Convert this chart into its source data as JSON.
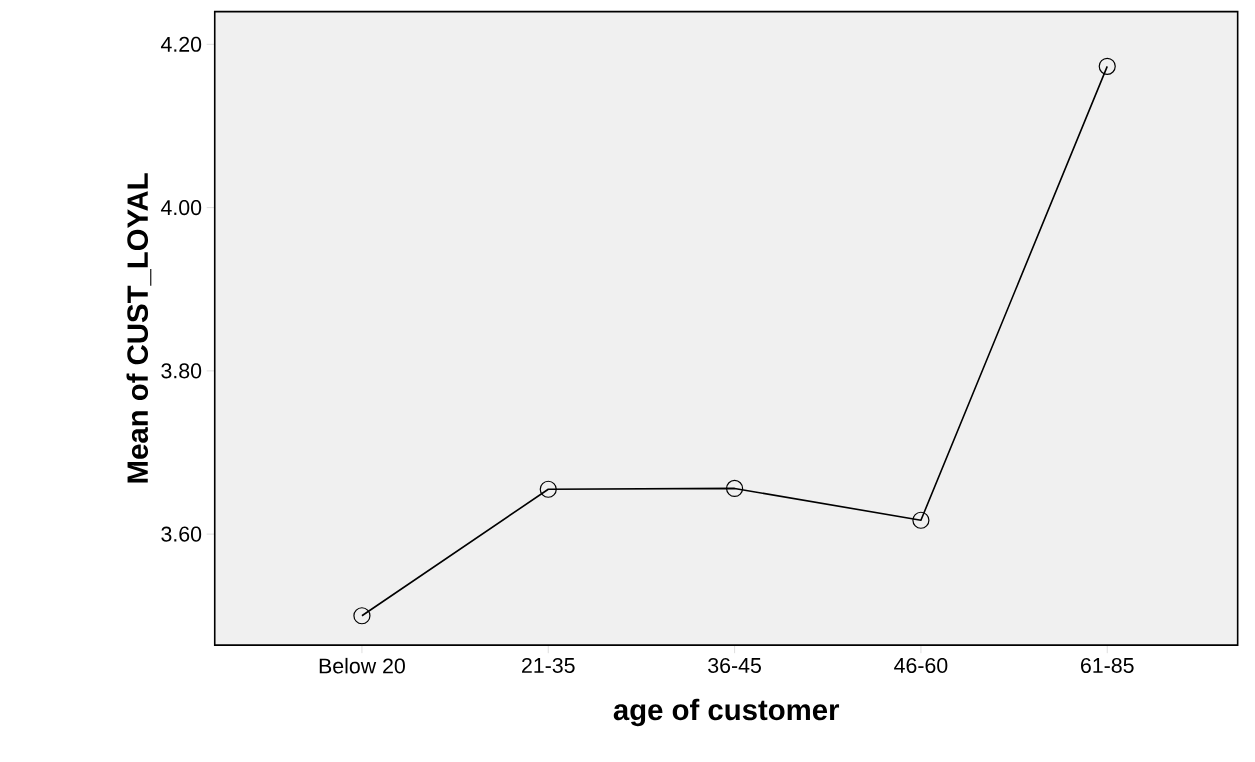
{
  "chart_data": {
    "type": "line",
    "xlabel": "age of customer",
    "ylabel": "Mean of CUST_LOYAL",
    "categories": [
      "Below 20",
      "21-35",
      "36-45",
      "46-60",
      "61-85"
    ],
    "series": [
      {
        "color": "#000000",
        "values": [
          3.5,
          3.655,
          3.656,
          3.617,
          4.173
        ]
      }
    ],
    "ylim": [
      3.464,
      4.24
    ],
    "yticks": [
      {
        "value": 3.6,
        "label": "3.60"
      },
      {
        "value": 3.8,
        "label": "3.80"
      },
      {
        "value": 4.0,
        "label": "4.00"
      },
      {
        "value": 4.2,
        "label": "4.20"
      }
    ],
    "marker": "circle",
    "line_style": "solid",
    "grid": false
  }
}
